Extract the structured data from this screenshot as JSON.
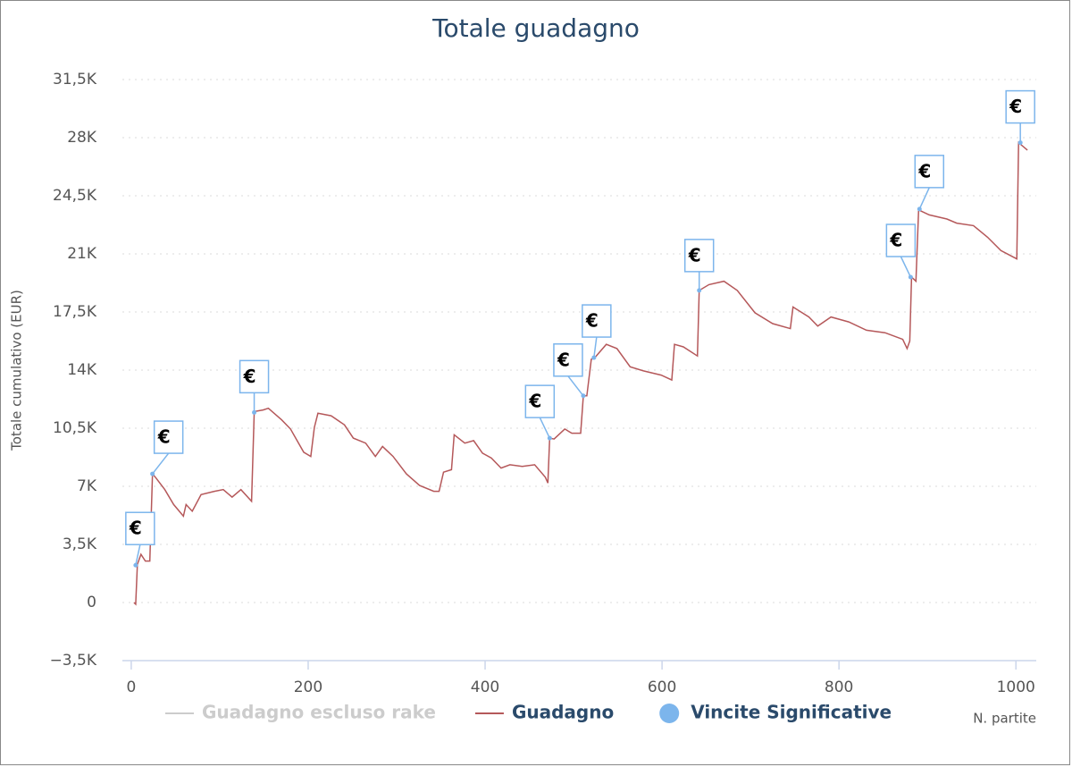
{
  "chart_data": {
    "type": "line",
    "title": "Totale guadagno",
    "y_label": "Totale cumulativo (EUR)",
    "x_label": "N. partite",
    "xlim": [
      -10,
      1023
    ],
    "xticks": [
      0,
      200,
      400,
      600,
      800,
      1000
    ],
    "ylim": [
      -3500,
      31500
    ],
    "yticks": [
      {
        "value": -3500,
        "label": "−3,5K"
      },
      0,
      {
        "value": 3500,
        "label": "3,5K"
      },
      {
        "value": 7000,
        "label": "7K"
      },
      {
        "value": 10500,
        "label": "10,5K"
      },
      {
        "value": 14000,
        "label": "14K"
      },
      {
        "value": 17500,
        "label": "17,5K"
      },
      {
        "value": 21000,
        "label": "21K"
      },
      {
        "value": 24500,
        "label": "24,5K"
      },
      {
        "value": 28000,
        "label": "28K"
      },
      {
        "value": 31500,
        "label": "31,5K"
      }
    ],
    "grid": true,
    "legend": "bottom",
    "marker_label": "€",
    "series": [
      {
        "name": "Guadagno escluso rake",
        "color": "#cccccc",
        "visible": false
      },
      {
        "name": "Guadagno",
        "color": "#b5585a",
        "x": [
          3,
          5,
          7,
          11,
          16,
          21,
          24,
          28,
          38,
          48,
          59,
          62,
          69,
          79,
          94,
          104,
          114,
          124,
          136,
          139,
          149,
          155,
          170,
          180,
          195,
          203,
          207,
          211,
          226,
          241,
          251,
          265,
          276,
          284,
          296,
          311,
          326,
          342,
          348,
          353,
          362,
          365,
          377,
          387,
          397,
          407,
          418,
          428,
          442,
          456,
          468,
          471,
          473,
          478,
          490,
          498,
          508,
          511,
          515,
          520,
          524,
          537,
          549,
          564,
          579,
          599,
          611,
          614,
          624,
          640,
          642,
          653,
          670,
          685,
          705,
          725,
          745,
          748,
          766,
          776,
          791,
          811,
          831,
          852,
          872,
          877,
          880,
          882,
          887,
          890,
          902,
          922,
          933,
          952,
          968,
          983,
          1001,
          1003,
          1013
        ],
        "values": [
          0,
          -100,
          2300,
          2900,
          2500,
          2500,
          7750,
          7500,
          6800,
          5900,
          5200,
          5900,
          5500,
          6500,
          6700,
          6800,
          6350,
          6800,
          6100,
          11500,
          11600,
          11700,
          11000,
          10450,
          9050,
          8800,
          10550,
          11400,
          11250,
          10700,
          9900,
          9600,
          8800,
          9400,
          8800,
          7750,
          7050,
          6700,
          6700,
          7850,
          8000,
          10100,
          9600,
          9750,
          9000,
          8700,
          8100,
          8300,
          8200,
          8300,
          7550,
          7200,
          9900,
          9850,
          10450,
          10200,
          10200,
          12450,
          12450,
          14650,
          14750,
          15550,
          15300,
          14200,
          13950,
          13700,
          13400,
          15550,
          15400,
          14850,
          18800,
          19150,
          19350,
          18800,
          17450,
          16800,
          16500,
          17800,
          17200,
          16650,
          17200,
          16900,
          16400,
          16250,
          15850,
          15300,
          15750,
          19600,
          19350,
          23650,
          23350,
          23100,
          22850,
          22700,
          22000,
          21200,
          20700,
          27700,
          27250
        ]
      },
      {
        "name": "Vincite Significative",
        "color": "#7cb5ec",
        "type": "scatter",
        "x": [
          5,
          24,
          139,
          473,
          511,
          523,
          642,
          881,
          891,
          1005
        ],
        "values": [
          2250,
          7750,
          11450,
          9900,
          12450,
          14750,
          18800,
          19600,
          23700,
          27700
        ]
      }
    ]
  }
}
